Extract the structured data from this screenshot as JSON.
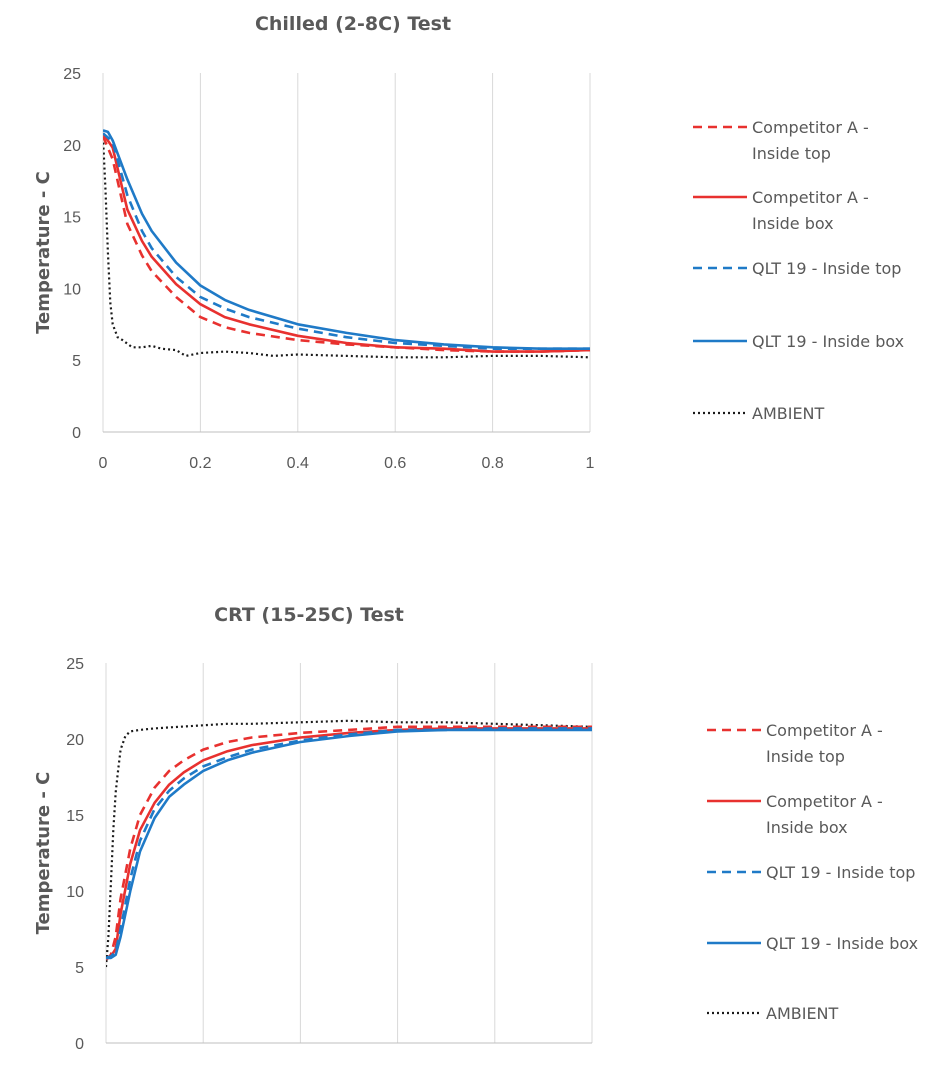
{
  "chart_data": [
    {
      "type": "line",
      "title": "Chilled (2-8C) Test",
      "xlabel": "",
      "ylabel": "Temperature - C",
      "xlim": [
        0,
        1
      ],
      "ylim": [
        0,
        25
      ],
      "x_ticks": [
        "0",
        "0.2",
        "0.4",
        "0.6",
        "0.8",
        "1"
      ],
      "y_ticks": [
        "0",
        "5",
        "10",
        "15",
        "20",
        "25"
      ],
      "grid": "vertical",
      "legend_position": "right",
      "series": [
        {
          "name": "Competitor A  - Inside top",
          "color": "#e8312f",
          "style": "dashed",
          "x": [
            0,
            0.02,
            0.05,
            0.08,
            0.1,
            0.15,
            0.2,
            0.25,
            0.3,
            0.4,
            0.5,
            0.6,
            0.7,
            0.8,
            0.9,
            1.0
          ],
          "y": [
            20.6,
            19.0,
            14.5,
            12.3,
            11.2,
            9.4,
            8.0,
            7.3,
            6.9,
            6.4,
            6.1,
            5.9,
            5.7,
            5.6,
            5.6,
            5.7
          ]
        },
        {
          "name": "Competitor A  - Inside box",
          "color": "#e8312f",
          "style": "solid",
          "x": [
            0,
            0.02,
            0.05,
            0.08,
            0.1,
            0.15,
            0.2,
            0.25,
            0.3,
            0.4,
            0.5,
            0.6,
            0.7,
            0.8,
            0.9,
            1.0
          ],
          "y": [
            20.8,
            19.8,
            15.5,
            13.3,
            12.2,
            10.3,
            8.9,
            8.0,
            7.5,
            6.7,
            6.2,
            5.9,
            5.8,
            5.6,
            5.6,
            5.7
          ]
        },
        {
          "name": "QLT 19 - Inside top",
          "color": "#1f7ac7",
          "style": "dashed",
          "x": [
            0,
            0.02,
            0.05,
            0.08,
            0.1,
            0.15,
            0.2,
            0.25,
            0.3,
            0.4,
            0.5,
            0.6,
            0.7,
            0.8,
            0.9,
            1.0
          ],
          "y": [
            20.8,
            20.2,
            16.5,
            14.0,
            12.8,
            10.8,
            9.4,
            8.6,
            8.0,
            7.2,
            6.6,
            6.2,
            6.0,
            5.8,
            5.8,
            5.8
          ]
        },
        {
          "name": "QLT 19 - Inside box",
          "color": "#1f7ac7",
          "style": "solid",
          "x": [
            0,
            0.01,
            0.02,
            0.05,
            0.08,
            0.1,
            0.15,
            0.2,
            0.25,
            0.3,
            0.4,
            0.5,
            0.6,
            0.7,
            0.8,
            0.9,
            1.0
          ],
          "y": [
            21.0,
            20.9,
            20.3,
            17.6,
            15.2,
            14.0,
            11.8,
            10.2,
            9.2,
            8.5,
            7.5,
            6.9,
            6.4,
            6.1,
            5.9,
            5.8,
            5.8
          ]
        },
        {
          "name": "AMBIENT",
          "color": "#1a1a1a",
          "style": "dotted",
          "x": [
            0,
            0.005,
            0.01,
            0.015,
            0.02,
            0.03,
            0.04,
            0.06,
            0.08,
            0.1,
            0.12,
            0.15,
            0.17,
            0.2,
            0.25,
            0.3,
            0.35,
            0.4,
            0.5,
            0.6,
            0.7,
            0.8,
            0.9,
            1.0
          ],
          "y": [
            20.5,
            17.0,
            12.5,
            9.0,
            7.5,
            6.6,
            6.4,
            5.9,
            5.9,
            6.0,
            5.8,
            5.7,
            5.3,
            5.5,
            5.6,
            5.5,
            5.3,
            5.4,
            5.3,
            5.2,
            5.2,
            5.3,
            5.3,
            5.2
          ]
        }
      ]
    },
    {
      "type": "line",
      "title": "CRT (15-25C) Test",
      "xlabel": "",
      "ylabel": "Temperature - C",
      "xlim": [
        0,
        1
      ],
      "ylim": [
        0,
        25
      ],
      "x_ticks": [],
      "y_ticks": [
        "0",
        "5",
        "10",
        "15",
        "20",
        "25"
      ],
      "grid": "vertical",
      "legend_position": "right",
      "series": [
        {
          "name": "Competitor A  - Inside top",
          "color": "#e8312f",
          "style": "dashed",
          "x": [
            0,
            0.01,
            0.02,
            0.03,
            0.05,
            0.07,
            0.1,
            0.13,
            0.16,
            0.2,
            0.25,
            0.3,
            0.4,
            0.5,
            0.6,
            0.7,
            0.8,
            0.9,
            1.0
          ],
          "y": [
            5.5,
            5.8,
            7.0,
            9.5,
            12.8,
            15.0,
            16.8,
            17.9,
            18.6,
            19.3,
            19.8,
            20.1,
            20.4,
            20.6,
            20.8,
            20.8,
            20.8,
            20.8,
            20.8
          ]
        },
        {
          "name": "Competitor A  - Inside box",
          "color": "#e8312f",
          "style": "solid",
          "x": [
            0,
            0.01,
            0.02,
            0.03,
            0.05,
            0.07,
            0.1,
            0.13,
            0.16,
            0.2,
            0.25,
            0.3,
            0.4,
            0.5,
            0.6,
            0.7,
            0.8,
            0.9,
            1.0
          ],
          "y": [
            5.5,
            5.7,
            6.2,
            8.5,
            11.8,
            14.0,
            15.8,
            17.0,
            17.8,
            18.6,
            19.2,
            19.6,
            20.1,
            20.4,
            20.6,
            20.7,
            20.7,
            20.7,
            20.7
          ]
        },
        {
          "name": "QLT 19 - Inside top",
          "color": "#1f7ac7",
          "style": "dashed",
          "x": [
            0,
            0.01,
            0.02,
            0.03,
            0.05,
            0.07,
            0.1,
            0.13,
            0.16,
            0.2,
            0.25,
            0.3,
            0.4,
            0.5,
            0.6,
            0.7,
            0.8,
            0.9,
            1.0
          ],
          "y": [
            5.6,
            5.7,
            6.0,
            7.5,
            10.8,
            13.3,
            15.4,
            16.6,
            17.4,
            18.2,
            18.8,
            19.3,
            19.9,
            20.3,
            20.6,
            20.6,
            20.7,
            20.7,
            20.7
          ]
        },
        {
          "name": "QLT 19 - Inside box",
          "color": "#1f7ac7",
          "style": "solid",
          "x": [
            0,
            0.01,
            0.02,
            0.03,
            0.05,
            0.07,
            0.1,
            0.13,
            0.16,
            0.2,
            0.25,
            0.3,
            0.4,
            0.5,
            0.6,
            0.7,
            0.8,
            0.9,
            1.0
          ],
          "y": [
            5.6,
            5.6,
            5.8,
            7.0,
            10.0,
            12.6,
            14.8,
            16.2,
            17.0,
            17.9,
            18.6,
            19.1,
            19.8,
            20.2,
            20.5,
            20.6,
            20.6,
            20.6,
            20.6
          ]
        },
        {
          "name": "AMBIENT",
          "color": "#1a1a1a",
          "style": "dotted",
          "x": [
            0,
            0.005,
            0.01,
            0.015,
            0.02,
            0.025,
            0.03,
            0.04,
            0.05,
            0.07,
            0.1,
            0.15,
            0.2,
            0.25,
            0.3,
            0.4,
            0.5,
            0.6,
            0.7,
            0.8,
            0.9,
            1.0
          ],
          "y": [
            5.0,
            7.0,
            10.5,
            14.0,
            16.5,
            18.0,
            19.3,
            20.2,
            20.5,
            20.6,
            20.7,
            20.8,
            20.9,
            21.0,
            21.0,
            21.1,
            21.2,
            21.1,
            21.1,
            21.0,
            20.9,
            20.8
          ]
        }
      ]
    }
  ]
}
